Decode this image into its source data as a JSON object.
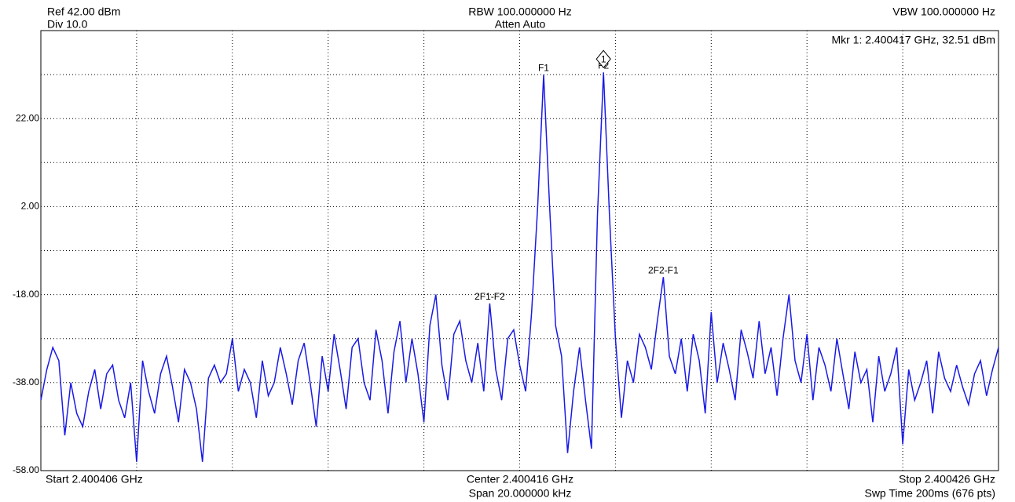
{
  "chart_data": {
    "type": "line",
    "ref_label": "Ref 42.00 dBm",
    "div_label": "Div 10.0",
    "rbw_label": "RBW 100.000000 Hz",
    "atten_label": "Atten Auto",
    "vbw_label": "VBW 100.000000 Hz",
    "start_label": "Start 2.400406 GHz",
    "center_label": "Center 2.400416 GHz",
    "span_label": "Span 20.000000 kHz",
    "stop_label": "Stop 2.400426 GHz",
    "sweep_label": "Swp Time 200ms (676 pts)",
    "marker": {
      "label": "Mkr 1: 2.400417 GHz, 32.51 dBm",
      "number": 1
    },
    "annotations": [
      "F1",
      "F2",
      "2F1-F2",
      "2F2-F1"
    ],
    "color": "#1a1ae6",
    "ylim": [
      -58,
      42
    ],
    "yticks": [
      {
        "value": 32,
        "label": null
      },
      {
        "value": 22,
        "label": "22.00"
      },
      {
        "value": 12,
        "label": null
      },
      {
        "value": 2,
        "label": "2.00"
      },
      {
        "value": -8,
        "label": null
      },
      {
        "value": -18,
        "label": "-18.00"
      },
      {
        "value": -28,
        "label": null
      },
      {
        "value": -38,
        "label": "-38.00"
      },
      {
        "value": -48,
        "label": null
      },
      {
        "value": -58,
        "label": "-58.00"
      }
    ],
    "x_divisions": 10,
    "grid": true,
    "values": [
      -42,
      -35,
      -30,
      -33,
      -50,
      -38,
      -45,
      -48,
      -40,
      -35,
      -44,
      -36,
      -34,
      -42,
      -46,
      -38,
      -56,
      -33,
      -40,
      -45,
      -36,
      -32,
      -39,
      -47,
      -35,
      -38,
      -44,
      -56,
      -37,
      -34,
      -38,
      -36,
      -28,
      -40,
      -35,
      -38,
      -46,
      -33,
      -41,
      -38,
      -30,
      -36,
      -43,
      -33,
      -29,
      -38,
      -48,
      -32,
      -40,
      -27,
      -35,
      -44,
      -30,
      -28,
      -38,
      -42,
      -26,
      -33,
      -45,
      -31,
      -24,
      -38,
      -28,
      -36,
      -47,
      -25,
      -18,
      -34,
      -42,
      -27,
      -24,
      -33,
      -38,
      -29,
      -40,
      -20,
      -35,
      -42,
      -28,
      -26,
      -34,
      -40,
      -22,
      2,
      32,
      2,
      -25,
      -32,
      -54,
      -40,
      -30,
      -42,
      -53,
      0,
      32.5,
      0,
      -28,
      -46,
      -33,
      -38,
      -27,
      -30,
      -35,
      -24,
      -14,
      -32,
      -36,
      -28,
      -40,
      -27,
      -33,
      -45,
      -22,
      -38,
      -29,
      -35,
      -42,
      -26,
      -31,
      -37,
      -24,
      -36,
      -30,
      -41,
      -28,
      -18,
      -33,
      -38,
      -27,
      -42,
      -30,
      -34,
      -40,
      -28,
      -36,
      -44,
      -31,
      -38,
      -35,
      -47,
      -32,
      -40,
      -36,
      -30,
      -52,
      -35,
      -42,
      -38,
      -33,
      -45,
      -31,
      -37,
      -40,
      -34,
      -39,
      -43,
      -36,
      -33,
      -41,
      -35,
      -30
    ]
  }
}
